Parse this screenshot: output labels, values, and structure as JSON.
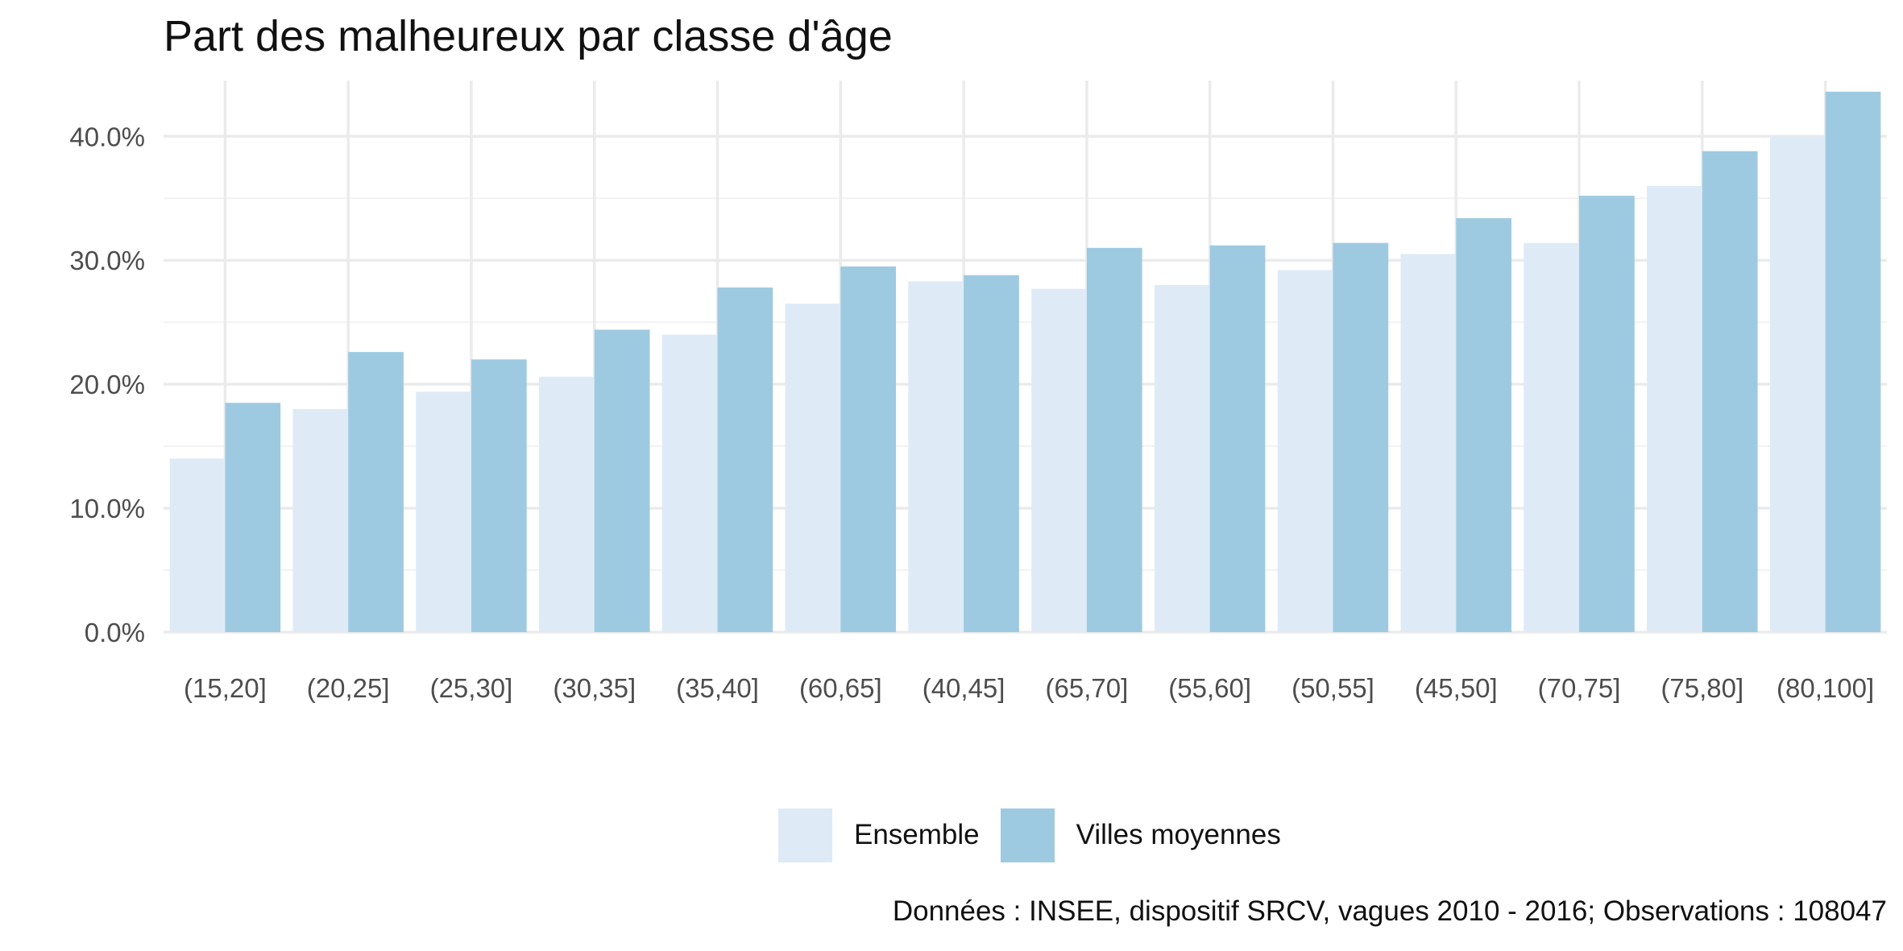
{
  "chart_data": {
    "type": "bar",
    "title": "Part des malheureux par classe d'âge",
    "caption": "Données : INSEE, dispositif SRCV, vagues 2010 - 2016; Observations : 108047",
    "xlabel": "",
    "ylabel": "",
    "ylim": [
      0,
      0.445
    ],
    "y_ticks": [
      0,
      0.1,
      0.2,
      0.3,
      0.4
    ],
    "y_tick_labels": [
      "0.0%",
      "10.0%",
      "20.0%",
      "30.0%",
      "40.0%"
    ],
    "grid": true,
    "legend_position": "bottom",
    "categories": [
      "(15,20]",
      "(20,25]",
      "(25,30]",
      "(30,35]",
      "(35,40]",
      "(60,65]",
      "(40,45]",
      "(65,70]",
      "(55,60]",
      "(50,55]",
      "(45,50]",
      "(70,75]",
      "(75,80]",
      "(80,100]"
    ],
    "series": [
      {
        "name": "Ensemble",
        "color": "#deebf7",
        "values": [
          0.14,
          0.18,
          0.194,
          0.206,
          0.24,
          0.265,
          0.283,
          0.277,
          0.28,
          0.292,
          0.305,
          0.314,
          0.36,
          0.4
        ]
      },
      {
        "name": "Villes moyennes",
        "color": "#9ecae1",
        "values": [
          0.185,
          0.226,
          0.22,
          0.244,
          0.278,
          0.295,
          0.288,
          0.31,
          0.312,
          0.314,
          0.334,
          0.352,
          0.388,
          0.436
        ]
      }
    ]
  }
}
